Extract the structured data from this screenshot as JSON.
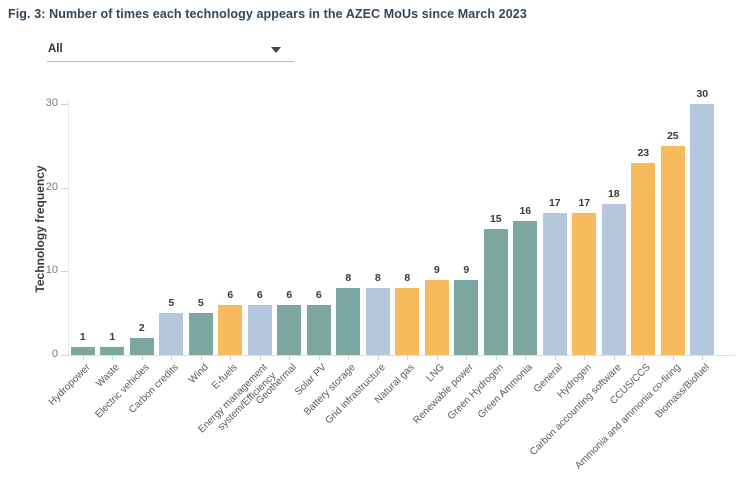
{
  "page": {
    "title": "Fig. 3: Number of times each technology appears in the AZEC MoUs since March 2023"
  },
  "filter": {
    "value": "All"
  },
  "chart_data": {
    "type": "bar",
    "title": "",
    "xlabel": "",
    "ylabel": "Technology frequency",
    "ylim": [
      0,
      30
    ],
    "yticks": [
      0,
      10,
      20,
      30
    ],
    "grid": false,
    "legend": false,
    "bar_value_labels": true,
    "palette": {
      "teal": "#7ca6a0",
      "orange": "#f7bb5e",
      "blue": "#b4c7dd"
    },
    "categories": [
      "Hydropower",
      "Waste",
      "Electric vehicles",
      "Carbon credits",
      "Wind",
      "E-fuels",
      "Energy management\nsystem/Efficiency",
      "Geothermal",
      "Solar PV",
      "Battery storage",
      "Grid infrastructure",
      "Natural gas",
      "LNG",
      "Renewable power",
      "Green Hydrogen",
      "Green Ammonia",
      "General",
      "Hydrogen",
      "Carbon accounting software",
      "CCUS/CCS",
      "Ammonia and ammonia co-firing",
      "Biomass/Biofuel"
    ],
    "values": [
      1,
      1,
      2,
      5,
      5,
      6,
      6,
      6,
      6,
      8,
      8,
      8,
      9,
      9,
      15,
      16,
      17,
      17,
      18,
      23,
      25,
      30
    ],
    "colors": [
      "teal",
      "teal",
      "teal",
      "blue",
      "teal",
      "orange",
      "blue",
      "teal",
      "teal",
      "teal",
      "blue",
      "orange",
      "orange",
      "teal",
      "teal",
      "teal",
      "blue",
      "orange",
      "blue",
      "orange",
      "orange",
      "blue"
    ]
  }
}
